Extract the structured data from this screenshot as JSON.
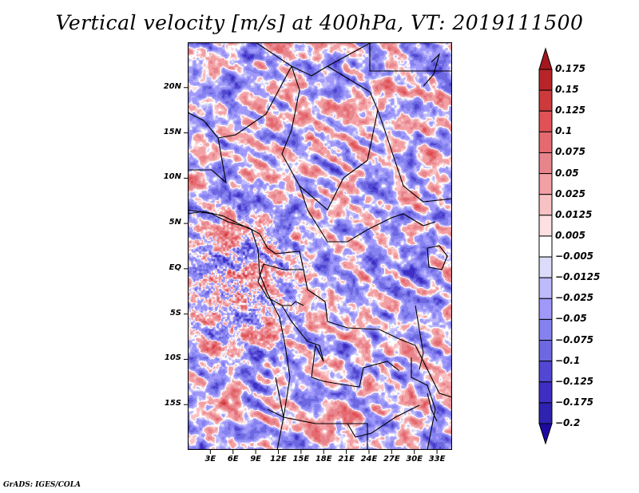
{
  "title": "Vertical velocity [m/s] at 400hPa, VT: 2019111500",
  "footer": "GrADS: IGES/COLA",
  "chart_data": {
    "type": "heatmap",
    "title": "Vertical velocity [m/s] at 400hPa, VT: 2019111500",
    "variable": "Vertical velocity",
    "units": "m/s",
    "level": "400hPa",
    "valid_time": "2019111500",
    "xlabel": "",
    "ylabel": "",
    "lon_range": [
      0,
      35
    ],
    "lat_range": [
      -20,
      25
    ],
    "lat_ticks": [
      {
        "value": 20,
        "label": "20N"
      },
      {
        "value": 15,
        "label": "15N"
      },
      {
        "value": 10,
        "label": "10N"
      },
      {
        "value": 5,
        "label": "5N"
      },
      {
        "value": 0,
        "label": "EQ"
      },
      {
        "value": -5,
        "label": "5S"
      },
      {
        "value": -10,
        "label": "10S"
      },
      {
        "value": -15,
        "label": "15S"
      }
    ],
    "lon_ticks": [
      {
        "value": 3,
        "label": "3E"
      },
      {
        "value": 6,
        "label": "6E"
      },
      {
        "value": 9,
        "label": "9E"
      },
      {
        "value": 12,
        "label": "12E"
      },
      {
        "value": 15,
        "label": "15E"
      },
      {
        "value": 18,
        "label": "18E"
      },
      {
        "value": 21,
        "label": "21E"
      },
      {
        "value": 24,
        "label": "24E"
      },
      {
        "value": 27,
        "label": "27E"
      },
      {
        "value": 30,
        "label": "30E"
      },
      {
        "value": 33,
        "label": "33E"
      }
    ],
    "grid": false,
    "colorbar": {
      "placement": "right",
      "levels": [
        0.175,
        0.15,
        0.125,
        0.1,
        0.075,
        0.05,
        0.025,
        0.0125,
        0.005,
        -0.005,
        -0.0125,
        -0.025,
        -0.05,
        -0.075,
        -0.1,
        -0.125,
        -0.175,
        -0.2
      ],
      "level_labels": [
        "0.175",
        "0.15",
        "0.125",
        "0.1",
        "0.075",
        "0.05",
        "0.025",
        "0.0125",
        "0.005",
        "−0.005",
        "−0.0125",
        "−0.025",
        "−0.05",
        "−0.075",
        "−0.1",
        "−0.125",
        "−0.175",
        "−0.2"
      ],
      "colors": [
        "#a3181f",
        "#b82528",
        "#cc3a3c",
        "#e05256",
        "#e56a70",
        "#e8858c",
        "#f2a0a4",
        "#f8c2c4",
        "#fde0e2",
        "#ffffff",
        "#dcdcfa",
        "#bfbafa",
        "#a099fa",
        "#8582f0",
        "#6d68e0",
        "#5247d2",
        "#3e2ec4",
        "#2e22b0",
        "#1c0aa2"
      ],
      "extend": "both"
    },
    "features": [
      "coastlines",
      "country borders"
    ]
  }
}
